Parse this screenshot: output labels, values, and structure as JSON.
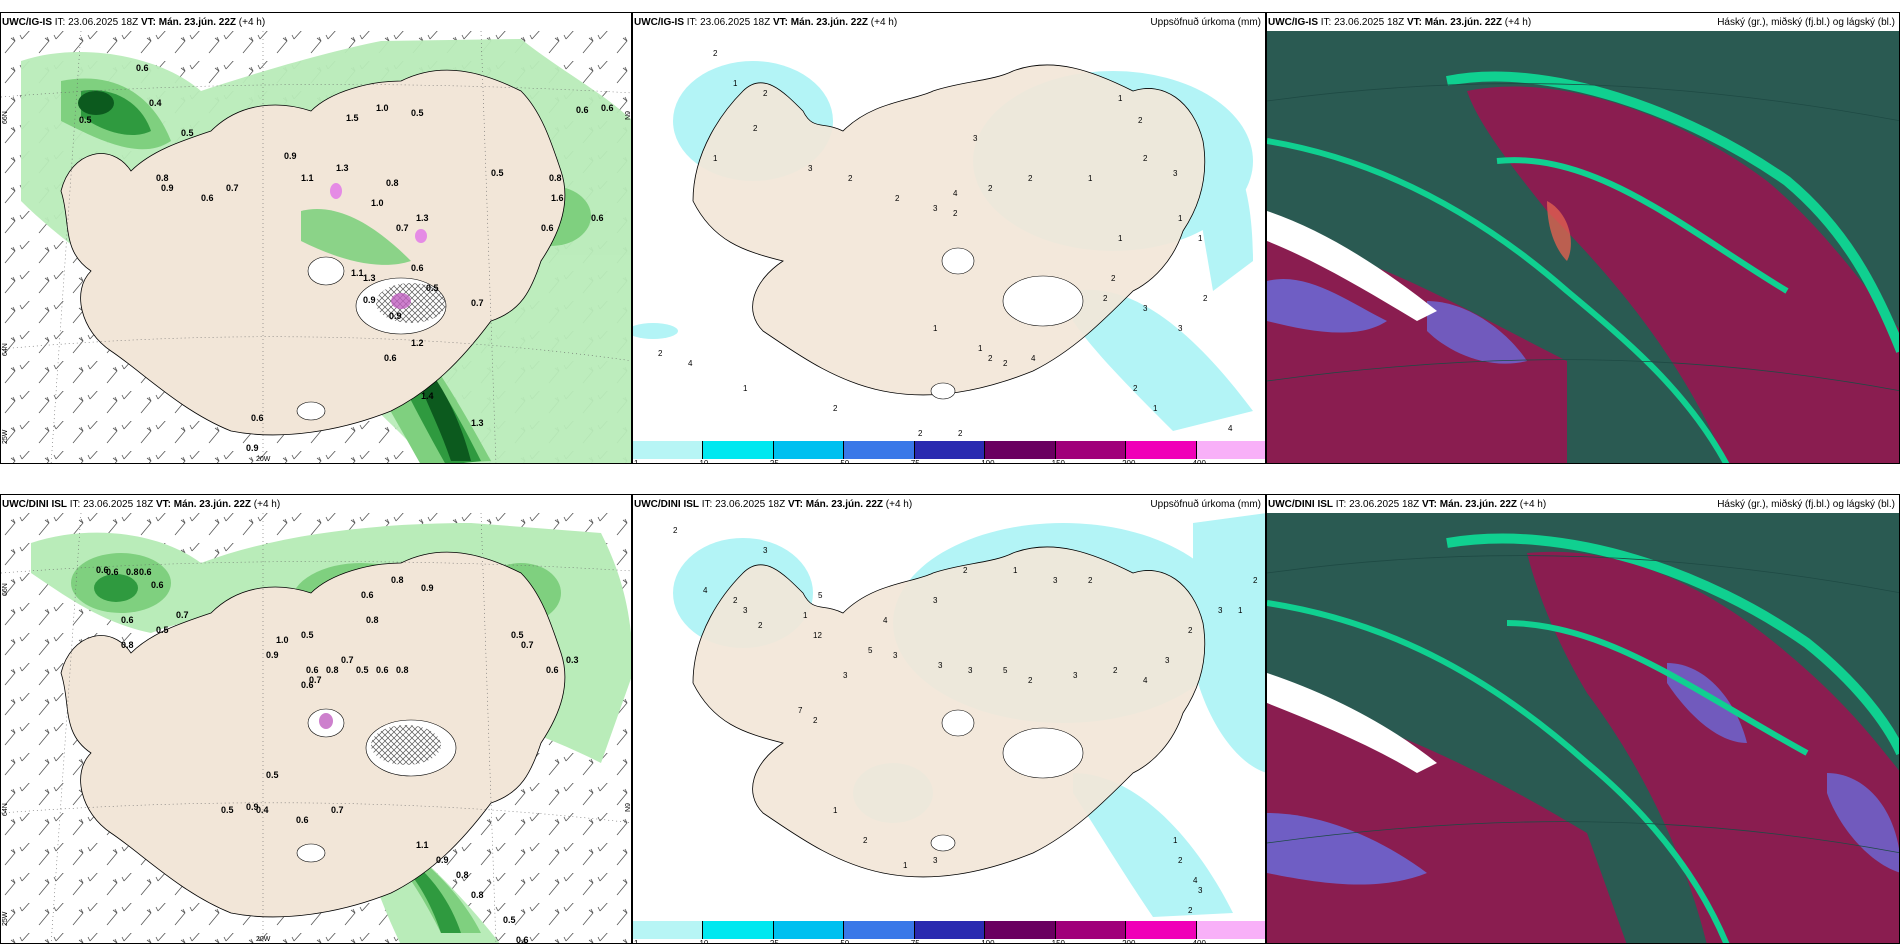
{
  "header": {
    "model_top": "UWC/IG-IS",
    "model_bottom": "UWC/DINI ISL",
    "issue": "IT: 23.06.2025 18Z",
    "valid_prefix": "VT:",
    "valid": "Mán. 23.jún. 22Z",
    "lead": "(+4 h)",
    "precip_title": "Uppsöfnuð úrkoma (mm)",
    "cloud_title": "Háský (gr.), miðský (fj.bl.) og lágský (bl.)"
  },
  "axis_labels": {
    "lat66": "66N",
    "lat64": "64N",
    "lon25": "25W",
    "lon20": "20W",
    "lon6": "6N"
  },
  "colorbar": {
    "ticks": [
      "1",
      "10",
      "25",
      "50",
      "75",
      "100",
      "150",
      "200",
      "400"
    ],
    "colors": [
      "#b7f5f5",
      "#00e8f0",
      "#00c0f0",
      "#3a78e8",
      "#2a2ab0",
      "#6a0060",
      "#a0007a",
      "#f000b8",
      "#f8b0f8"
    ]
  },
  "colors": {
    "land": "#f2e6d8",
    "rain_light": "#b9ecb9",
    "rain_mid": "#7fd07f",
    "rain_heavy": "#2f9a3f",
    "rain_extreme": "#0c5a1e",
    "precip_cyan": "#b3f4f6",
    "cloud_high": "#2a5a52",
    "cloud_mid": "#8a1d50",
    "cloud_low": "#6a6ad8",
    "cloud_edge": "#10d090"
  },
  "top_left_values": [
    "0.6",
    "0.4",
    "0.5",
    "0.5",
    "0.9",
    "1.0",
    "1.5",
    "0.5",
    "0.5",
    "0.6",
    "0.6",
    "0.8",
    "0.7",
    "0.9",
    "1.1",
    "1.3",
    "0.8",
    "0.6",
    "1.3",
    "1.0",
    "0.7",
    "1.1",
    "1.3",
    "0.9",
    "0.9",
    "0.6",
    "1.2",
    "1.4",
    "1.3",
    "0.8",
    "0.6",
    "0.9",
    "1.6",
    "0.6",
    "0.6",
    "0.5",
    "0.7",
    "0.6"
  ],
  "bottom_left_values": [
    "0.6",
    "0.6",
    "0.8",
    "0.6",
    "0.6",
    "0.7",
    "0.6",
    "0.5",
    "0.8",
    "0.9",
    "1.0",
    "0.5",
    "0.6",
    "0.8",
    "0.9",
    "0.8",
    "0.6",
    "0.6",
    "0.7",
    "0.8",
    "0.7",
    "0.5",
    "0.6",
    "0.8",
    "0.5",
    "0.9",
    "0.5",
    "0.4",
    "0.6",
    "0.7",
    "1.1",
    "0.9",
    "0.8",
    "0.8",
    "0.5",
    "0.6",
    "0.5",
    "0.7",
    "0.3",
    "0.6"
  ],
  "top_mid_values": [
    "2",
    "1",
    "2",
    "2",
    "1",
    "3",
    "2",
    "2",
    "3",
    "2",
    "2",
    "3",
    "4",
    "2",
    "1",
    "2",
    "3",
    "1",
    "1",
    "1",
    "2",
    "2",
    "3",
    "3",
    "2",
    "1",
    "1",
    "2",
    "2",
    "4",
    "1",
    "2",
    "2",
    "2",
    "2",
    "1",
    "4",
    "2",
    "4",
    "2",
    "1"
  ],
  "bottom_mid_values": [
    "2",
    "4",
    "3",
    "2",
    "2",
    "5",
    "1",
    "12",
    "5",
    "3",
    "3",
    "3",
    "5",
    "2",
    "3",
    "2",
    "4",
    "3",
    "2",
    "3",
    "1",
    "2",
    "2",
    "3",
    "1",
    "2",
    "3",
    "4",
    "3",
    "2",
    "7",
    "1",
    "2",
    "1",
    "3",
    "1",
    "2",
    "4",
    "3",
    "2",
    "3"
  ]
}
